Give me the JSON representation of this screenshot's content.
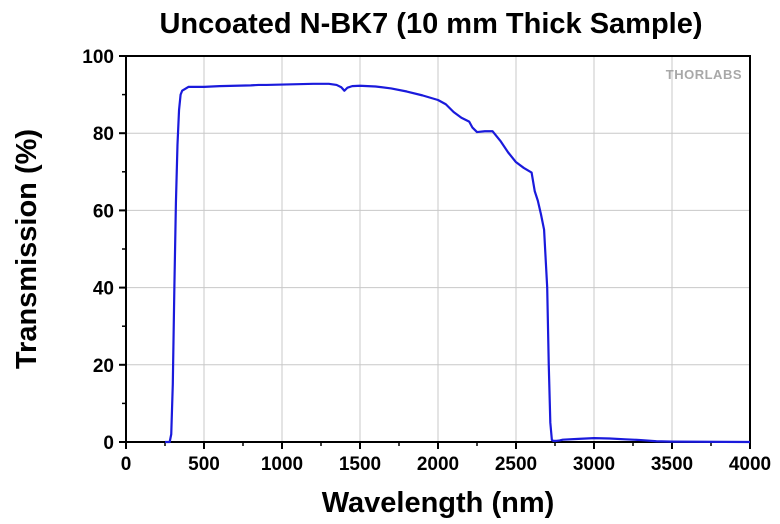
{
  "chart_data": {
    "type": "line",
    "title": "Uncoated N-BK7 (10 mm Thick Sample)",
    "xlabel": "Wavelength (nm)",
    "ylabel": "Transmission (%)",
    "xlim": [
      0,
      4000
    ],
    "ylim": [
      0,
      100
    ],
    "xticks": [
      0,
      500,
      1000,
      1500,
      2000,
      2500,
      3000,
      3500,
      4000
    ],
    "yticks": [
      0,
      20,
      40,
      60,
      80,
      100
    ],
    "xtick_labels": [
      "0",
      "500",
      "1000",
      "1500",
      "2000",
      "2500",
      "3000",
      "3500",
      "4000"
    ],
    "ytick_labels": [
      "0",
      "20",
      "40",
      "60",
      "80",
      "100"
    ],
    "grid": true,
    "watermark": "THORLABS",
    "colors": {
      "line": "#1a1adc",
      "grid": "#c8c8c8",
      "axes": "#000000"
    },
    "series": [
      {
        "x": [
          250,
          280,
          290,
          300,
          310,
          320,
          330,
          340,
          350,
          360,
          380,
          400,
          450,
          500,
          600,
          800,
          850,
          900,
          1000,
          1100,
          1200,
          1300,
          1350,
          1380,
          1400,
          1420,
          1450,
          1500,
          1600,
          1700,
          1800,
          1900,
          2000,
          2050,
          2100,
          2150,
          2200,
          2220,
          2250,
          2300,
          2350,
          2400,
          2450,
          2500,
          2550,
          2600,
          2620,
          2640,
          2660,
          2680,
          2700,
          2710,
          2720,
          2730,
          2740,
          2750,
          2760,
          2780,
          2800,
          2900,
          3000,
          3100,
          3200,
          3300,
          3400,
          3500,
          4000
        ],
        "y": [
          0,
          0,
          2,
          15,
          40,
          62,
          77,
          86,
          90,
          91,
          91.5,
          92,
          92,
          92,
          92.2,
          92.4,
          92.5,
          92.5,
          92.6,
          92.7,
          92.8,
          92.8,
          92.5,
          91.9,
          91,
          91.8,
          92.2,
          92.3,
          92.1,
          91.6,
          90.8,
          89.8,
          88.6,
          87.5,
          85.5,
          84,
          83,
          81.5,
          80.3,
          80.5,
          80.5,
          78,
          75,
          72.5,
          71,
          69.8,
          65,
          62.5,
          59,
          55,
          40,
          20,
          5,
          0.5,
          0.3,
          0.3,
          0.3,
          0.4,
          0.6,
          0.8,
          1.0,
          0.9,
          0.7,
          0.5,
          0.2,
          0.1,
          0
        ]
      }
    ]
  }
}
